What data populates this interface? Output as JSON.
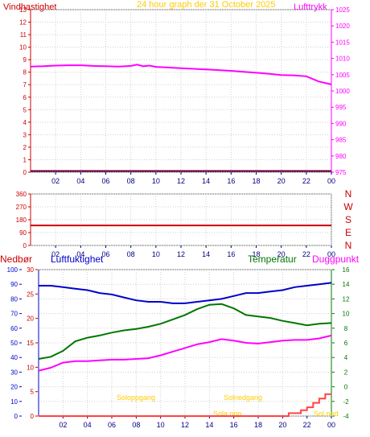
{
  "title_text": "24 hour graph der    31 October 2025",
  "colors": {
    "wind": "#cc0000",
    "pressure": "#ff00ff",
    "title": "#ffcc00",
    "humidity": "#0000cc",
    "temperature": "#007700",
    "dewpoint": "#ff00ff",
    "rain": "#ff4444",
    "sun": "#ffcc00",
    "axis": "#000080",
    "grid": "#cfcfcf"
  },
  "chart_data": [
    {
      "type": "line",
      "panel": "wind_pressure",
      "title": "24 hour graph der    31 October 2025",
      "left_axis_label": "Vindhastighet",
      "right_axis_label": "Lufttrykk",
      "x_ticks": [
        "02",
        "04",
        "06",
        "08",
        "10",
        "12",
        "14",
        "16",
        "18",
        "20",
        "22",
        "00"
      ],
      "x_range": [
        0,
        24
      ],
      "y_left_ticks": [
        "0",
        "1",
        "2",
        "3",
        "4",
        "5",
        "6",
        "7",
        "8",
        "9",
        "10",
        "11",
        "12",
        "13"
      ],
      "y_left_range": [
        0,
        13
      ],
      "y_right_ticks": [
        "975",
        "980",
        "985",
        "990",
        "995",
        "1000",
        "1005",
        "1010",
        "1015",
        "1020",
        "1025"
      ],
      "y_right_range": [
        975,
        1025
      ],
      "series": [
        {
          "name": "Vindhastighet",
          "axis": "left",
          "x": [
            0,
            24
          ],
          "y": [
            0.1,
            0.1
          ]
        },
        {
          "name": "Lufttrykk",
          "axis": "right",
          "x": [
            0,
            1,
            2,
            3,
            4,
            5,
            6,
            7,
            8,
            8.5,
            9,
            9.5,
            10,
            11,
            12,
            13,
            14,
            15,
            16,
            17,
            18,
            19,
            20,
            21,
            22,
            23,
            24
          ],
          "y": [
            1007.5,
            1007.6,
            1007.8,
            1007.9,
            1007.9,
            1007.7,
            1007.6,
            1007.5,
            1007.7,
            1008.1,
            1007.6,
            1007.8,
            1007.4,
            1007.2,
            1007.0,
            1006.8,
            1006.6,
            1006.4,
            1006.2,
            1005.9,
            1005.6,
            1005.3,
            1004.9,
            1004.8,
            1004.5,
            1002.9,
            1002.0
          ]
        }
      ]
    },
    {
      "type": "line",
      "panel": "wind_direction",
      "x_ticks": [
        "02",
        "04",
        "06",
        "08",
        "10",
        "12",
        "14",
        "16",
        "18",
        "20",
        "22",
        "00"
      ],
      "x_range": [
        0,
        24
      ],
      "y_ticks": [
        "0",
        "90",
        "180",
        "270",
        "360"
      ],
      "y_range": [
        0,
        360
      ],
      "direction_labels": [
        "N",
        "W",
        "S",
        "E",
        "N"
      ],
      "series": [
        {
          "name": "Vindretning",
          "x": [
            0,
            24
          ],
          "y": [
            140,
            140
          ]
        }
      ]
    },
    {
      "type": "line",
      "panel": "humidity_temp",
      "labels": {
        "rain": "Nedbør",
        "humidity": "Luftfuktighet",
        "temperature": "Temperatur",
        "dewpoint": "Duggpunkt"
      },
      "x_ticks": [
        "02",
        "04",
        "06",
        "08",
        "10",
        "12",
        "14",
        "16",
        "18",
        "20",
        "22",
        "00"
      ],
      "x_range": [
        0,
        24
      ],
      "y_rain_ticks": [
        "0",
        "5",
        "10",
        "15",
        "20",
        "25",
        "30"
      ],
      "y_rain_range": [
        0,
        30
      ],
      "y_humidity_ticks": [
        "0",
        "10",
        "20",
        "30",
        "40",
        "50",
        "60",
        "70",
        "80",
        "90",
        "100"
      ],
      "y_humidity_range": [
        0,
        100
      ],
      "y_temp_ticks": [
        "-4",
        "-2",
        "0",
        "2",
        "4",
        "6",
        "8",
        "10",
        "12",
        "14",
        "16"
      ],
      "y_temp_range": [
        -4,
        16
      ],
      "sun_labels": [
        "Soloppgang",
        "Solnedgang",
        "Sola opp",
        "Sol ned"
      ],
      "series": [
        {
          "name": "Luftfuktighet",
          "axis": "humidity",
          "x": [
            0,
            1,
            2,
            3,
            4,
            5,
            6,
            7,
            8,
            9,
            10,
            11,
            12,
            13,
            14,
            15,
            16,
            17,
            18,
            19,
            20,
            21,
            22,
            23,
            24
          ],
          "y": [
            89,
            89,
            88,
            87,
            86,
            84,
            83,
            81,
            79,
            78,
            78,
            77,
            77,
            78,
            79,
            80,
            82,
            84,
            84,
            85,
            86,
            88,
            89,
            90,
            91
          ]
        },
        {
          "name": "Temperatur",
          "axis": "temp",
          "x": [
            0,
            1,
            2,
            3,
            4,
            5,
            6,
            7,
            8,
            9,
            10,
            11,
            12,
            13,
            14,
            15,
            16,
            17,
            18,
            19,
            20,
            21,
            22,
            23,
            24
          ],
          "y": [
            3.8,
            4.1,
            4.9,
            6.2,
            6.7,
            7.0,
            7.4,
            7.7,
            7.9,
            8.2,
            8.6,
            9.2,
            9.8,
            10.6,
            11.2,
            11.3,
            10.7,
            9.8,
            9.6,
            9.4,
            9.0,
            8.7,
            8.4,
            8.6,
            8.7
          ]
        },
        {
          "name": "Duggpunkt",
          "axis": "temp",
          "x": [
            0,
            1,
            2,
            3,
            4,
            5,
            6,
            7,
            8,
            9,
            10,
            11,
            12,
            13,
            14,
            15,
            16,
            17,
            18,
            19,
            20,
            21,
            22,
            23,
            24
          ],
          "y": [
            2.2,
            2.6,
            3.3,
            3.5,
            3.5,
            3.6,
            3.7,
            3.7,
            3.8,
            3.9,
            4.3,
            4.8,
            5.3,
            5.8,
            6.1,
            6.5,
            6.3,
            6.0,
            5.9,
            6.1,
            6.3,
            6.4,
            6.4,
            6.6,
            7.0
          ]
        },
        {
          "name": "Nedbør",
          "axis": "rain",
          "x": [
            0,
            20.5,
            20.5,
            21.5,
            21.5,
            22,
            22,
            22.5,
            22.5,
            23,
            23,
            23.5,
            23.5,
            24
          ],
          "y": [
            0,
            0,
            0.6,
            0.6,
            1.2,
            1.2,
            1.8,
            1.8,
            2.7,
            2.7,
            3.6,
            3.6,
            4.5,
            4.5
          ]
        }
      ]
    }
  ]
}
